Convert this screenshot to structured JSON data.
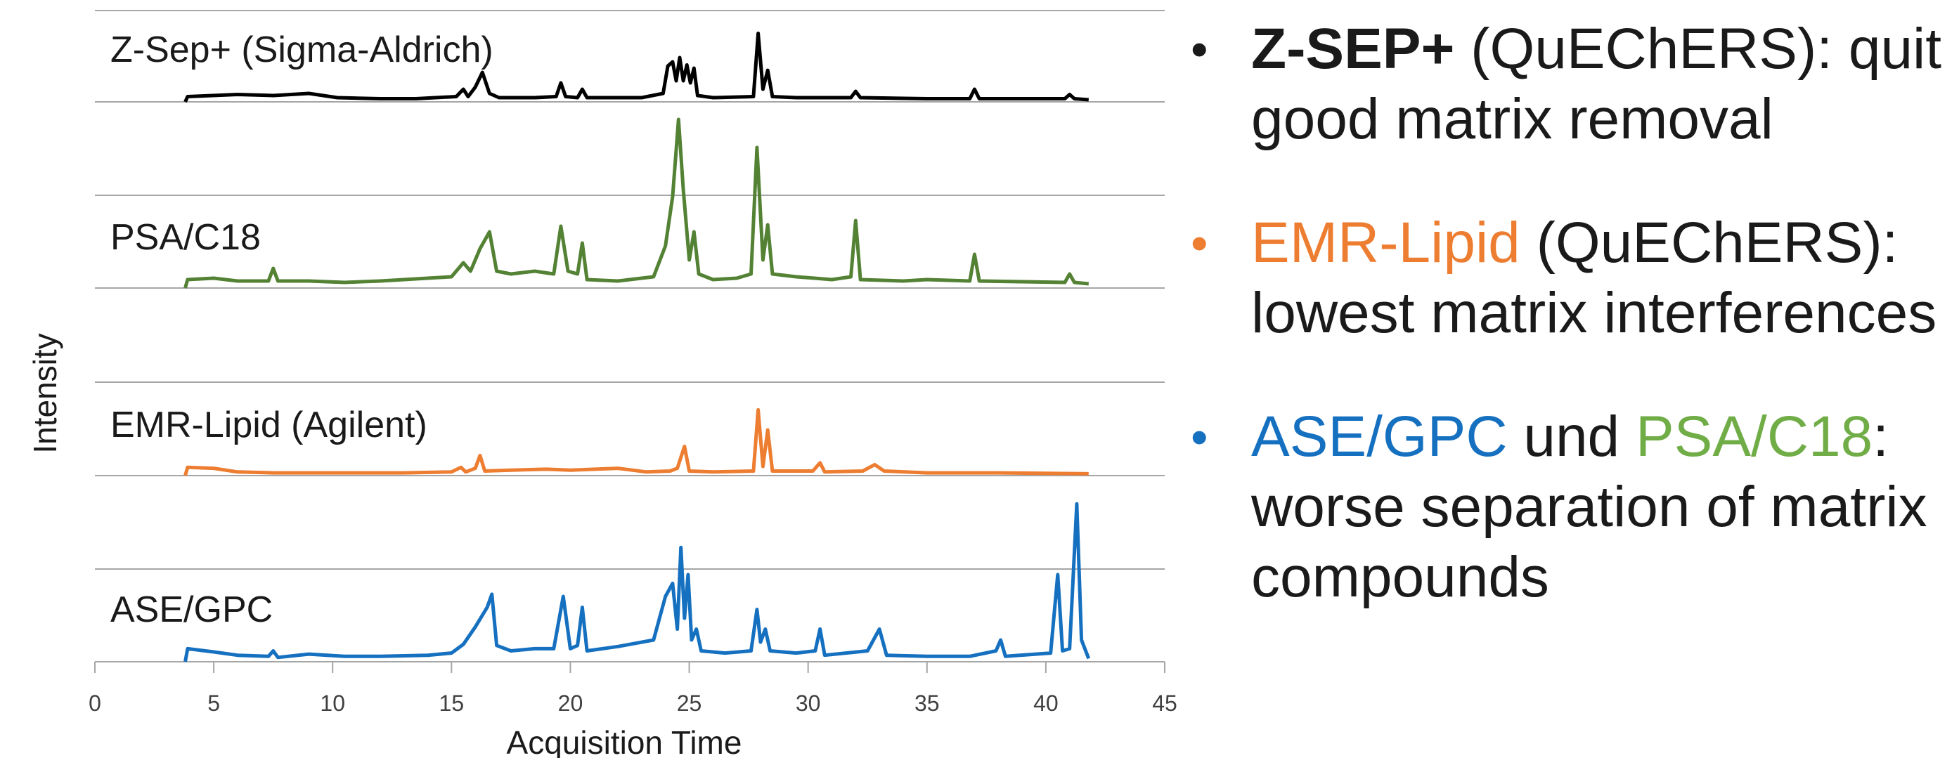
{
  "chart_data": {
    "type": "line",
    "xlabel": "Acquisition Time",
    "ylabel": "Intensity",
    "xlim": [
      0,
      45
    ],
    "xticks": [
      0,
      5,
      10,
      15,
      20,
      25,
      30,
      35,
      40,
      45
    ],
    "grid": "horizontal",
    "series": [
      {
        "name": "Z-Sep+ (Sigma-Aldrich)",
        "color": "#000000",
        "values": [
          [
            3.8,
            0
          ],
          [
            3.9,
            0.05
          ],
          [
            6,
            0.07
          ],
          [
            7.5,
            0.06
          ],
          [
            9,
            0.08
          ],
          [
            10.2,
            0.04
          ],
          [
            12,
            0.03
          ],
          [
            13.5,
            0.03
          ],
          [
            15.2,
            0.05
          ],
          [
            15.5,
            0.12
          ],
          [
            15.7,
            0.05
          ],
          [
            16,
            0.14
          ],
          [
            16.3,
            0.28
          ],
          [
            16.6,
            0.08
          ],
          [
            17,
            0.04
          ],
          [
            18.5,
            0.04
          ],
          [
            19.4,
            0.05
          ],
          [
            19.6,
            0.18
          ],
          [
            19.8,
            0.05
          ],
          [
            20.3,
            0.04
          ],
          [
            20.5,
            0.12
          ],
          [
            20.7,
            0.04
          ],
          [
            23,
            0.04
          ],
          [
            23.9,
            0.08
          ],
          [
            24.1,
            0.34
          ],
          [
            24.3,
            0.38
          ],
          [
            24.45,
            0.2
          ],
          [
            24.6,
            0.42
          ],
          [
            24.75,
            0.2
          ],
          [
            24.9,
            0.35
          ],
          [
            25.05,
            0.18
          ],
          [
            25.2,
            0.32
          ],
          [
            25.35,
            0.06
          ],
          [
            26,
            0.04
          ],
          [
            27.7,
            0.05
          ],
          [
            27.9,
            0.65
          ],
          [
            28.1,
            0.12
          ],
          [
            28.3,
            0.3
          ],
          [
            28.5,
            0.05
          ],
          [
            29.5,
            0.04
          ],
          [
            31.8,
            0.04
          ],
          [
            32,
            0.1
          ],
          [
            32.2,
            0.04
          ],
          [
            35,
            0.03
          ],
          [
            36.8,
            0.03
          ],
          [
            37,
            0.12
          ],
          [
            37.2,
            0.03
          ],
          [
            40.8,
            0.03
          ],
          [
            41,
            0.07
          ],
          [
            41.2,
            0.03
          ],
          [
            41.8,
            0.02
          ]
        ]
      },
      {
        "name": "PSA/C18",
        "color": "#548235",
        "values": [
          [
            3.8,
            0
          ],
          [
            3.9,
            0.06
          ],
          [
            5,
            0.07
          ],
          [
            6,
            0.05
          ],
          [
            7.3,
            0.05
          ],
          [
            7.5,
            0.14
          ],
          [
            7.7,
            0.05
          ],
          [
            9,
            0.05
          ],
          [
            10.5,
            0.04
          ],
          [
            12,
            0.05
          ],
          [
            13,
            0.06
          ],
          [
            14,
            0.07
          ],
          [
            15,
            0.08
          ],
          [
            15.5,
            0.18
          ],
          [
            15.8,
            0.12
          ],
          [
            16.2,
            0.28
          ],
          [
            16.6,
            0.4
          ],
          [
            16.9,
            0.12
          ],
          [
            17.5,
            0.1
          ],
          [
            18.5,
            0.12
          ],
          [
            19.3,
            0.1
          ],
          [
            19.6,
            0.44
          ],
          [
            19.9,
            0.12
          ],
          [
            20.3,
            0.1
          ],
          [
            20.5,
            0.32
          ],
          [
            20.7,
            0.06
          ],
          [
            22,
            0.05
          ],
          [
            23.5,
            0.08
          ],
          [
            24,
            0.3
          ],
          [
            24.3,
            0.65
          ],
          [
            24.55,
            1.2
          ],
          [
            24.75,
            0.7
          ],
          [
            25,
            0.2
          ],
          [
            25.2,
            0.4
          ],
          [
            25.4,
            0.1
          ],
          [
            26,
            0.06
          ],
          [
            27,
            0.07
          ],
          [
            27.6,
            0.1
          ],
          [
            27.85,
            1.0
          ],
          [
            28.1,
            0.2
          ],
          [
            28.3,
            0.45
          ],
          [
            28.5,
            0.1
          ],
          [
            29.5,
            0.08
          ],
          [
            31,
            0.06
          ],
          [
            31.8,
            0.08
          ],
          [
            32,
            0.48
          ],
          [
            32.2,
            0.06
          ],
          [
            34,
            0.05
          ],
          [
            35,
            0.06
          ],
          [
            36.8,
            0.05
          ],
          [
            37,
            0.24
          ],
          [
            37.2,
            0.05
          ],
          [
            40.8,
            0.04
          ],
          [
            41,
            0.1
          ],
          [
            41.2,
            0.04
          ],
          [
            41.8,
            0.03
          ]
        ]
      },
      {
        "name": "EMR-Lipid (Agilent)",
        "color": "#ED7D31",
        "values": [
          [
            3.8,
            0
          ],
          [
            3.9,
            0.09
          ],
          [
            5,
            0.08
          ],
          [
            6,
            0.04
          ],
          [
            7.5,
            0.03
          ],
          [
            10,
            0.03
          ],
          [
            13,
            0.03
          ],
          [
            15,
            0.04
          ],
          [
            15.4,
            0.09
          ],
          [
            15.6,
            0.04
          ],
          [
            16,
            0.08
          ],
          [
            16.2,
            0.22
          ],
          [
            16.4,
            0.05
          ],
          [
            17.5,
            0.06
          ],
          [
            19,
            0.07
          ],
          [
            20,
            0.06
          ],
          [
            22,
            0.08
          ],
          [
            23.2,
            0.04
          ],
          [
            24.2,
            0.05
          ],
          [
            24.5,
            0.08
          ],
          [
            24.8,
            0.32
          ],
          [
            25,
            0.05
          ],
          [
            26,
            0.04
          ],
          [
            27.7,
            0.05
          ],
          [
            27.9,
            0.72
          ],
          [
            28.1,
            0.1
          ],
          [
            28.3,
            0.5
          ],
          [
            28.5,
            0.05
          ],
          [
            30.2,
            0.05
          ],
          [
            30.5,
            0.14
          ],
          [
            30.7,
            0.04
          ],
          [
            32.3,
            0.05
          ],
          [
            32.8,
            0.12
          ],
          [
            33.2,
            0.05
          ],
          [
            35,
            0.03
          ],
          [
            38,
            0.03
          ],
          [
            41.8,
            0.02
          ]
        ]
      },
      {
        "name": "ASE/GPC",
        "color": "#1670C0",
        "values": [
          [
            3.8,
            0
          ],
          [
            3.9,
            0.12
          ],
          [
            5,
            0.09
          ],
          [
            6,
            0.06
          ],
          [
            7.3,
            0.05
          ],
          [
            7.5,
            0.1
          ],
          [
            7.7,
            0.04
          ],
          [
            9,
            0.07
          ],
          [
            10.5,
            0.05
          ],
          [
            12,
            0.05
          ],
          [
            14,
            0.06
          ],
          [
            15,
            0.08
          ],
          [
            15.5,
            0.16
          ],
          [
            16,
            0.32
          ],
          [
            16.5,
            0.5
          ],
          [
            16.7,
            0.62
          ],
          [
            16.9,
            0.15
          ],
          [
            17.5,
            0.1
          ],
          [
            18.5,
            0.12
          ],
          [
            19.3,
            0.12
          ],
          [
            19.7,
            0.6
          ],
          [
            20,
            0.12
          ],
          [
            20.3,
            0.15
          ],
          [
            20.5,
            0.5
          ],
          [
            20.7,
            0.1
          ],
          [
            22,
            0.14
          ],
          [
            23.5,
            0.2
          ],
          [
            24,
            0.6
          ],
          [
            24.3,
            0.72
          ],
          [
            24.5,
            0.3
          ],
          [
            24.65,
            1.05
          ],
          [
            24.8,
            0.4
          ],
          [
            24.95,
            0.8
          ],
          [
            25.1,
            0.2
          ],
          [
            25.3,
            0.3
          ],
          [
            25.5,
            0.1
          ],
          [
            26.5,
            0.08
          ],
          [
            27.6,
            0.1
          ],
          [
            27.85,
            0.48
          ],
          [
            28,
            0.18
          ],
          [
            28.2,
            0.3
          ],
          [
            28.4,
            0.1
          ],
          [
            29.5,
            0.08
          ],
          [
            30.3,
            0.1
          ],
          [
            30.5,
            0.3
          ],
          [
            30.7,
            0.06
          ],
          [
            32.5,
            0.1
          ],
          [
            33,
            0.3
          ],
          [
            33.3,
            0.06
          ],
          [
            35,
            0.05
          ],
          [
            36.8,
            0.05
          ],
          [
            37.9,
            0.1
          ],
          [
            38.1,
            0.2
          ],
          [
            38.3,
            0.05
          ],
          [
            40.2,
            0.08
          ],
          [
            40.5,
            0.8
          ],
          [
            40.7,
            0.1
          ],
          [
            41,
            0.12
          ],
          [
            41.3,
            1.45
          ],
          [
            41.5,
            0.2
          ],
          [
            41.8,
            0.03
          ]
        ]
      }
    ]
  },
  "bullets": [
    {
      "bold": "Z-SEP+",
      "text": " (QuEChERS): quit good matrix removal",
      "dot_color": "#1a1a1a"
    },
    {
      "colored": "EMR-Lipid",
      "colored_color": "#ED7D31",
      "text": " (QuEChERS): lowest matrix interferences",
      "dot_color": "#ED7D31"
    },
    {
      "colored_a": "ASE/GPC",
      "colored_a_color": "#1670C0",
      "mid": " und ",
      "colored_b": "PSA/C18",
      "colored_b_color": "#70AD47",
      "text": ": worse separation of matrix compounds",
      "dot_color": "#1670C0"
    }
  ]
}
